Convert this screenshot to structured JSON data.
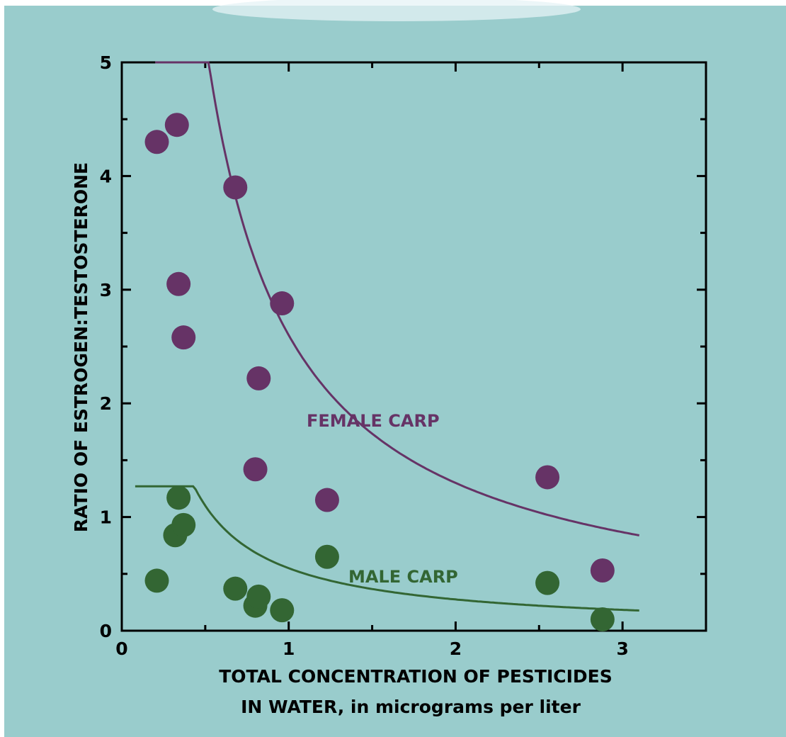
{
  "chart_data": {
    "type": "scatter",
    "title": "",
    "xlabel_lines": [
      "TOTAL CONCENTRATION OF PESTICIDES",
      "IN WATER, in micrograms per liter"
    ],
    "ylabel": "RATIO OF ESTROGEN:TESTOSTERONE",
    "xlim": [
      0,
      3.5
    ],
    "ylim": [
      0,
      5
    ],
    "x_ticks": [
      "0",
      "1",
      "2",
      "3"
    ],
    "y_ticks": [
      "0",
      "1",
      "2",
      "3",
      "4",
      "5"
    ],
    "x_tick_values": [
      0,
      1,
      2,
      3
    ],
    "y_tick_values": [
      0,
      1,
      2,
      3,
      4,
      5
    ],
    "x_minor_ticks": [
      0.5,
      1.5,
      2.5
    ],
    "y_minor_ticks": [
      0.5,
      1.5,
      2.5,
      3.5,
      4.5
    ],
    "grid": false,
    "series": [
      {
        "name": "FEMALE CARP",
        "color": "#663366",
        "points": [
          [
            0.21,
            4.3
          ],
          [
            0.33,
            4.45
          ],
          [
            0.68,
            3.9
          ],
          [
            0.34,
            3.05
          ],
          [
            0.96,
            2.88
          ],
          [
            0.37,
            2.58
          ],
          [
            0.82,
            2.22
          ],
          [
            0.8,
            1.42
          ],
          [
            1.23,
            1.15
          ],
          [
            2.55,
            1.35
          ],
          [
            2.88,
            0.53
          ]
        ],
        "fit_curve": {
          "form": "y = a / x",
          "a": 2.6,
          "x_range": [
            0.2,
            3.1
          ]
        }
      },
      {
        "name": "MALE CARP",
        "color": "#336633",
        "points": [
          [
            0.21,
            0.44
          ],
          [
            0.34,
            1.17
          ],
          [
            0.32,
            0.84
          ],
          [
            0.37,
            0.93
          ],
          [
            0.68,
            0.37
          ],
          [
            0.8,
            0.22
          ],
          [
            0.82,
            0.3
          ],
          [
            0.96,
            0.18
          ],
          [
            1.23,
            0.65
          ],
          [
            2.55,
            0.42
          ],
          [
            2.88,
            0.1
          ]
        ],
        "fit_curve": {
          "form": "y = a / x",
          "a": 0.55,
          "x_range": [
            0.08,
            3.1
          ],
          "y_max": 1.27
        }
      }
    ],
    "annotations": [
      {
        "text": "FEMALE CARP",
        "x": 1.1,
        "y": 1.82,
        "color": "#663366"
      },
      {
        "text": "MALE CARP",
        "x": 1.36,
        "y": 0.42,
        "color": "#336633"
      }
    ]
  }
}
